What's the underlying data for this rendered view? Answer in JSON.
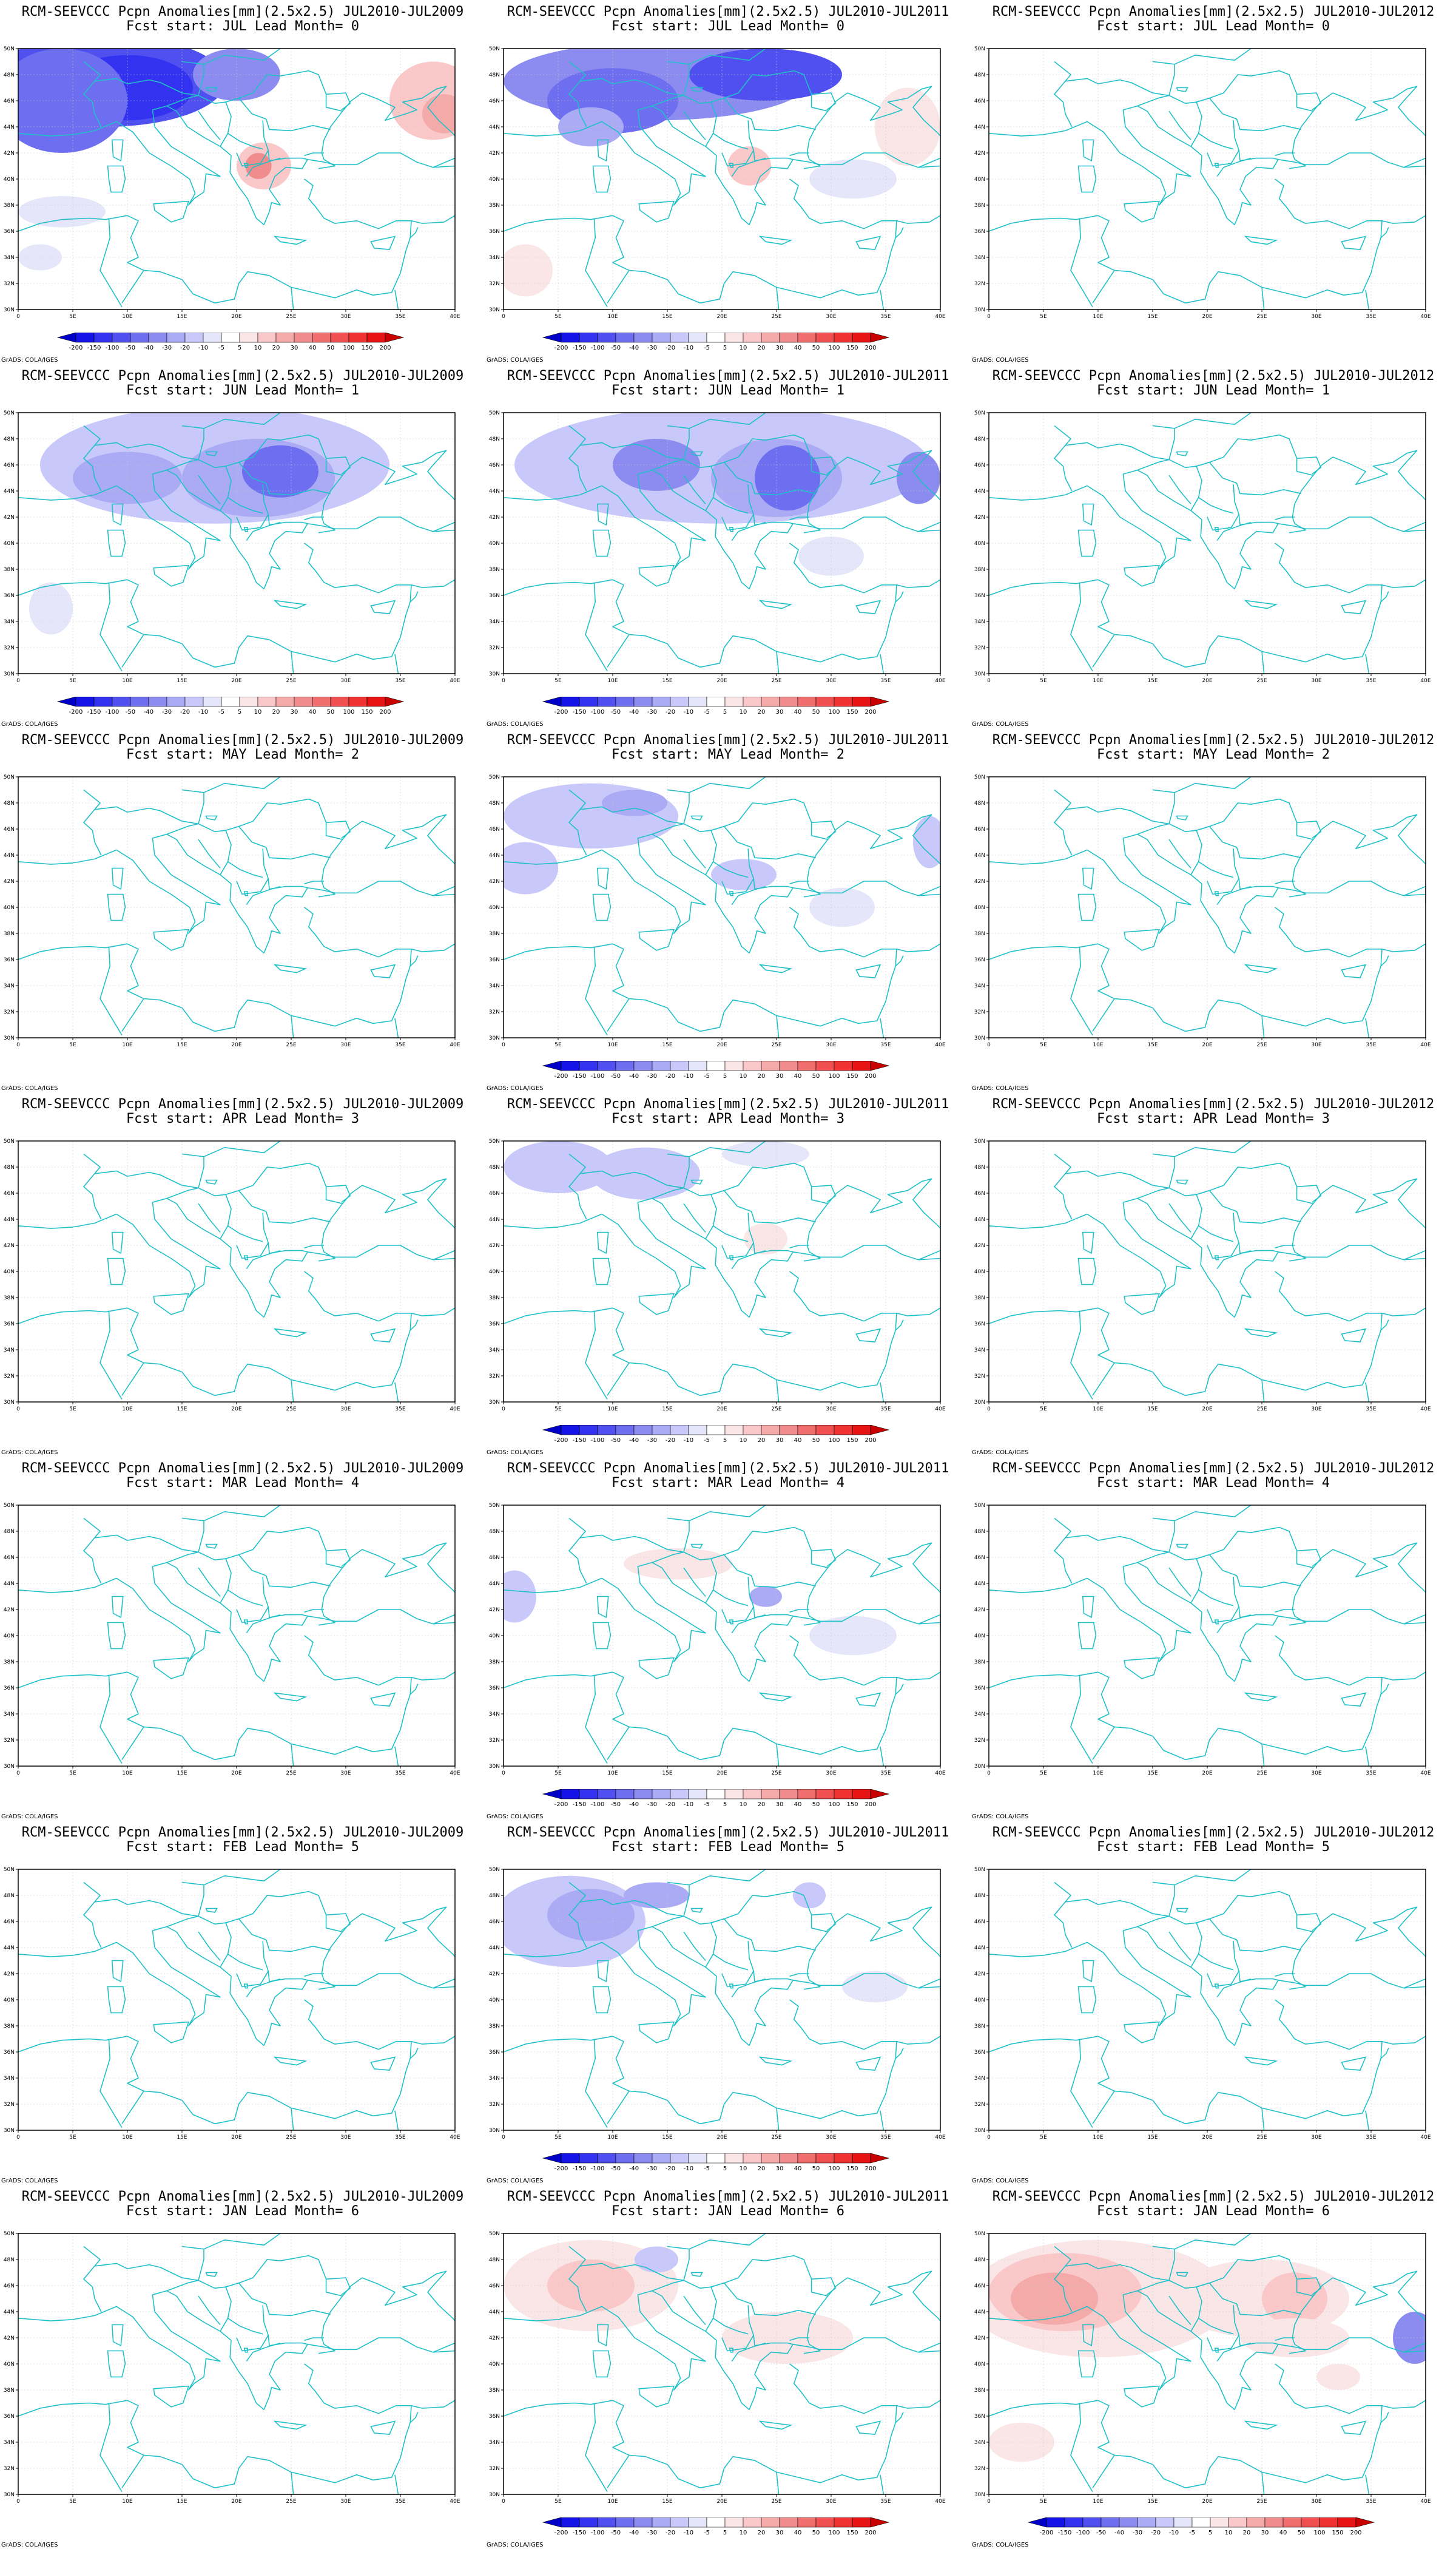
{
  "map_style": {
    "border_color": "#20c0c8",
    "frame_color": "#000000",
    "grid_color": "#c8c8c8"
  },
  "axes": {
    "lon_labels": [
      "0",
      "5E",
      "10E",
      "15E",
      "20E",
      "25E",
      "30E",
      "35E",
      "40E"
    ],
    "lat_labels": [
      "50N",
      "48N",
      "46N",
      "44N",
      "42N",
      "40N",
      "38N",
      "36N",
      "34N",
      "32N",
      "30N"
    ],
    "lon_range": [
      0,
      40
    ],
    "lat_range": [
      30,
      50
    ]
  },
  "legend": {
    "levels": [
      "-200",
      "-150",
      "-100",
      "-50",
      "-40",
      "-30",
      "-20",
      "-10",
      "-5",
      "5",
      "10",
      "20",
      "30",
      "40",
      "50",
      "100",
      "150",
      "200"
    ],
    "colors": [
      "#0000c8",
      "#1414e6",
      "#3232f0",
      "#5050f0",
      "#6e6ef0",
      "#8c8cf0",
      "#aaaaf5",
      "#c8c8fa",
      "#e6e6fa",
      "#ffffff",
      "#fae6e6",
      "#fac8c8",
      "#f5aaaa",
      "#f08c8c",
      "#f06e6e",
      "#f05050",
      "#f03232",
      "#e61414",
      "#c80000"
    ]
  },
  "credit": "GrADS: COLA/IGES",
  "panels": [
    {
      "id": "r0c0",
      "title": "RCM-SEEVCCC Pcpn Anomalies[mm](2.5x2.5) JUL2010-JUL2009",
      "subtitle": "Fcst start: JUL  Lead Month= 0",
      "colorbar": true,
      "blobs": [
        {
          "lon": 8,
          "lat": 47.5,
          "rx": 11,
          "ry": 3.5,
          "level": -50
        },
        {
          "lon": 10,
          "lat": 47,
          "rx": 6,
          "ry": 2.5,
          "level": -100
        },
        {
          "lon": 4,
          "lat": 46,
          "rx": 6,
          "ry": 4,
          "level": -40
        },
        {
          "lon": 20,
          "lat": 48,
          "rx": 4,
          "ry": 2,
          "level": -30
        },
        {
          "lon": 22.5,
          "lat": 41,
          "rx": 2.5,
          "ry": 1.8,
          "level": 20
        },
        {
          "lon": 22,
          "lat": 41,
          "rx": 1.2,
          "ry": 1,
          "level": 40
        },
        {
          "lon": 38,
          "lat": 46,
          "rx": 4,
          "ry": 3,
          "level": 20
        },
        {
          "lon": 39,
          "lat": 45,
          "rx": 2,
          "ry": 1.5,
          "level": 30
        },
        {
          "lon": 4,
          "lat": 37.5,
          "rx": 4,
          "ry": 1.2,
          "level": -5
        },
        {
          "lon": 2,
          "lat": 34,
          "rx": 2,
          "ry": 1,
          "level": -5
        }
      ]
    },
    {
      "id": "r0c1",
      "title": "RCM-SEEVCCC Pcpn Anomalies[mm](2.5x2.5) JUL2010-JUL2011",
      "subtitle": "Fcst start: JUL  Lead Month= 0",
      "colorbar": true,
      "blobs": [
        {
          "lon": 14,
          "lat": 47.5,
          "rx": 14,
          "ry": 3,
          "level": -30
        },
        {
          "lon": 10,
          "lat": 46,
          "rx": 6,
          "ry": 2.5,
          "level": -40
        },
        {
          "lon": 24,
          "lat": 48,
          "rx": 7,
          "ry": 2,
          "level": -50
        },
        {
          "lon": 8,
          "lat": 44,
          "rx": 3,
          "ry": 1.5,
          "level": -20
        },
        {
          "lon": 22.5,
          "lat": 41,
          "rx": 2,
          "ry": 1.5,
          "level": 20
        },
        {
          "lon": 37,
          "lat": 44,
          "rx": 3,
          "ry": 3,
          "level": 10
        },
        {
          "lon": 2,
          "lat": 33,
          "rx": 2.5,
          "ry": 2,
          "level": 10
        },
        {
          "lon": 32,
          "lat": 40,
          "rx": 4,
          "ry": 1.5,
          "level": -5
        }
      ]
    },
    {
      "id": "r0c2",
      "title": "RCM-SEEVCCC Pcpn Anomalies[mm](2.5x2.5) JUL2010-JUL2012",
      "subtitle": "Fcst start: JUL  Lead Month= 0",
      "colorbar": false,
      "blobs": []
    },
    {
      "id": "r1c0",
      "title": "RCM-SEEVCCC Pcpn Anomalies[mm](2.5x2.5) JUL2010-JUL2009",
      "subtitle": "Fcst start: JUN  Lead Month= 1",
      "colorbar": true,
      "blobs": [
        {
          "lon": 18,
          "lat": 46,
          "rx": 16,
          "ry": 4.5,
          "level": -10
        },
        {
          "lon": 22,
          "lat": 45,
          "rx": 7,
          "ry": 3,
          "level": -20
        },
        {
          "lon": 24,
          "lat": 45.5,
          "rx": 3.5,
          "ry": 2,
          "level": -40
        },
        {
          "lon": 10,
          "lat": 45,
          "rx": 5,
          "ry": 2,
          "level": -20
        },
        {
          "lon": 3,
          "lat": 35,
          "rx": 2,
          "ry": 2,
          "level": -5
        }
      ]
    },
    {
      "id": "r1c1",
      "title": "RCM-SEEVCCC Pcpn Anomalies[mm](2.5x2.5) JUL2010-JUL2011",
      "subtitle": "Fcst start: JUN  Lead Month= 1",
      "colorbar": true,
      "blobs": [
        {
          "lon": 20,
          "lat": 46,
          "rx": 19,
          "ry": 4.5,
          "level": -10
        },
        {
          "lon": 25,
          "lat": 45,
          "rx": 6,
          "ry": 3,
          "level": -20
        },
        {
          "lon": 26,
          "lat": 45,
          "rx": 3,
          "ry": 2.5,
          "level": -40
        },
        {
          "lon": 14,
          "lat": 46,
          "rx": 4,
          "ry": 2,
          "level": -30
        },
        {
          "lon": 38,
          "lat": 45,
          "rx": 2,
          "ry": 2,
          "level": -30
        },
        {
          "lon": 30,
          "lat": 39,
          "rx": 3,
          "ry": 1.5,
          "level": -5
        }
      ]
    },
    {
      "id": "r1c2",
      "title": "RCM-SEEVCCC Pcpn Anomalies[mm](2.5x2.5) JUL2010-JUL2012",
      "subtitle": "Fcst start: JUN  Lead Month= 1",
      "colorbar": false,
      "blobs": []
    },
    {
      "id": "r2c0",
      "title": "RCM-SEEVCCC Pcpn Anomalies[mm](2.5x2.5) JUL2010-JUL2009",
      "subtitle": "Fcst start: MAY  Lead Month= 2",
      "colorbar": false,
      "blobs": []
    },
    {
      "id": "r2c1",
      "title": "RCM-SEEVCCC Pcpn Anomalies[mm](2.5x2.5) JUL2010-JUL2011",
      "subtitle": "Fcst start: MAY  Lead Month= 2",
      "colorbar": true,
      "blobs": [
        {
          "lon": 8,
          "lat": 47,
          "rx": 8,
          "ry": 2.5,
          "level": -10
        },
        {
          "lon": 12,
          "lat": 48,
          "rx": 3,
          "ry": 1,
          "level": -20
        },
        {
          "lon": 2,
          "lat": 43,
          "rx": 3,
          "ry": 2,
          "level": -10
        },
        {
          "lon": 22,
          "lat": 42.5,
          "rx": 3,
          "ry": 1.2,
          "level": -10
        },
        {
          "lon": 31,
          "lat": 40,
          "rx": 3,
          "ry": 1.5,
          "level": -5
        },
        {
          "lon": 39,
          "lat": 45,
          "rx": 1.5,
          "ry": 2,
          "level": -10
        }
      ]
    },
    {
      "id": "r2c2",
      "title": "RCM-SEEVCCC Pcpn Anomalies[mm](2.5x2.5) JUL2010-JUL2012",
      "subtitle": "Fcst start: MAY  Lead Month= 2",
      "colorbar": false,
      "blobs": []
    },
    {
      "id": "r3c0",
      "title": "RCM-SEEVCCC Pcpn Anomalies[mm](2.5x2.5) JUL2010-JUL2009",
      "subtitle": "Fcst start: APR  Lead Month= 3",
      "colorbar": false,
      "blobs": []
    },
    {
      "id": "r3c1",
      "title": "RCM-SEEVCCC Pcpn Anomalies[mm](2.5x2.5) JUL2010-JUL2011",
      "subtitle": "Fcst start: APR  Lead Month= 3",
      "colorbar": true,
      "blobs": [
        {
          "lon": 5,
          "lat": 48,
          "rx": 5,
          "ry": 2,
          "level": -10
        },
        {
          "lon": 13,
          "lat": 47.5,
          "rx": 5,
          "ry": 2,
          "level": -10
        },
        {
          "lon": 23,
          "lat": 43,
          "rx": 5,
          "ry": 2.5,
          "level": 5
        },
        {
          "lon": 24,
          "lat": 42.5,
          "rx": 2,
          "ry": 1.2,
          "level": 10
        },
        {
          "lon": 24,
          "lat": 49,
          "rx": 4,
          "ry": 1,
          "level": -5
        }
      ]
    },
    {
      "id": "r3c2",
      "title": "RCM-SEEVCCC Pcpn Anomalies[mm](2.5x2.5) JUL2010-JUL2012",
      "subtitle": "Fcst start: APR  Lead Month= 3",
      "colorbar": false,
      "blobs": []
    },
    {
      "id": "r4c0",
      "title": "RCM-SEEVCCC Pcpn Anomalies[mm](2.5x2.5) JUL2010-JUL2009",
      "subtitle": "Fcst start: MAR  Lead Month= 4",
      "colorbar": false,
      "blobs": []
    },
    {
      "id": "r4c1",
      "title": "RCM-SEEVCCC Pcpn Anomalies[mm](2.5x2.5) JUL2010-JUL2011",
      "subtitle": "Fcst start: MAR  Lead Month= 4",
      "colorbar": true,
      "blobs": [
        {
          "lon": 30,
          "lat": 49,
          "rx": 10,
          "ry": 1.5,
          "level": 5
        },
        {
          "lon": 16,
          "lat": 45.5,
          "rx": 5,
          "ry": 1.2,
          "level": 10
        },
        {
          "lon": 8,
          "lat": 48,
          "rx": 3,
          "ry": 1,
          "level": 5
        },
        {
          "lon": 1,
          "lat": 43,
          "rx": 2,
          "ry": 2,
          "level": -10
        },
        {
          "lon": 32,
          "lat": 40,
          "rx": 4,
          "ry": 1.5,
          "level": -5
        },
        {
          "lon": 24,
          "lat": 43,
          "rx": 1.5,
          "ry": 0.8,
          "level": -20
        }
      ]
    },
    {
      "id": "r4c2",
      "title": "RCM-SEEVCCC Pcpn Anomalies[mm](2.5x2.5) JUL2010-JUL2012",
      "subtitle": "Fcst start: MAR  Lead Month= 4",
      "colorbar": false,
      "blobs": []
    },
    {
      "id": "r5c0",
      "title": "RCM-SEEVCCC Pcpn Anomalies[mm](2.5x2.5) JUL2010-JUL2009",
      "subtitle": "Fcst start: FEB  Lead Month= 5",
      "colorbar": false,
      "blobs": []
    },
    {
      "id": "r5c1",
      "title": "RCM-SEEVCCC Pcpn Anomalies[mm](2.5x2.5) JUL2010-JUL2011",
      "subtitle": "Fcst start: FEB  Lead Month= 5",
      "colorbar": true,
      "blobs": [
        {
          "lon": 6,
          "lat": 46,
          "rx": 7,
          "ry": 3.5,
          "level": -10
        },
        {
          "lon": 8,
          "lat": 46.5,
          "rx": 4,
          "ry": 2,
          "level": -20
        },
        {
          "lon": 14,
          "lat": 48,
          "rx": 3,
          "ry": 1,
          "level": -20
        },
        {
          "lon": 28,
          "lat": 48,
          "rx": 1.5,
          "ry": 1,
          "level": -10
        },
        {
          "lon": 34,
          "lat": 41,
          "rx": 3,
          "ry": 1.2,
          "level": -5
        }
      ]
    },
    {
      "id": "r5c2",
      "title": "RCM-SEEVCCC Pcpn Anomalies[mm](2.5x2.5) JUL2010-JUL2012",
      "subtitle": "Fcst start: FEB  Lead Month= 5",
      "colorbar": false,
      "blobs": []
    },
    {
      "id": "r6c0",
      "title": "RCM-SEEVCCC Pcpn Anomalies[mm](2.5x2.5) JUL2010-JUL2009",
      "subtitle": "Fcst start: JAN  Lead Month= 6",
      "colorbar": false,
      "blobs": []
    },
    {
      "id": "r6c1",
      "title": "RCM-SEEVCCC Pcpn Anomalies[mm](2.5x2.5) JUL2010-JUL2011",
      "subtitle": "Fcst start: JAN  Lead Month= 6",
      "colorbar": true,
      "blobs": [
        {
          "lon": 8,
          "lat": 46,
          "rx": 8,
          "ry": 3.5,
          "level": 10
        },
        {
          "lon": 8,
          "lat": 46,
          "rx": 4,
          "ry": 2,
          "level": 20
        },
        {
          "lon": 26,
          "lat": 42,
          "rx": 6,
          "ry": 2,
          "level": 10
        },
        {
          "lon": 27,
          "lat": 48,
          "rx": 6,
          "ry": 2,
          "level": 5
        },
        {
          "lon": 14,
          "lat": 48,
          "rx": 2,
          "ry": 1,
          "level": -10
        }
      ]
    },
    {
      "id": "r6c2",
      "title": "RCM-SEEVCCC Pcpn Anomalies[mm](2.5x2.5) JUL2010-JUL2012",
      "subtitle": "Fcst start: JAN  Lead Month= 6",
      "colorbar": true,
      "blobs": [
        {
          "lon": 10,
          "lat": 45,
          "rx": 12,
          "ry": 4.5,
          "level": 10
        },
        {
          "lon": 7,
          "lat": 45.5,
          "rx": 7,
          "ry": 3,
          "level": 20
        },
        {
          "lon": 6,
          "lat": 45,
          "rx": 4,
          "ry": 2,
          "level": 30
        },
        {
          "lon": 25,
          "lat": 45,
          "rx": 8,
          "ry": 3,
          "level": 10
        },
        {
          "lon": 28,
          "lat": 45,
          "rx": 3,
          "ry": 2,
          "level": 20
        },
        {
          "lon": 28,
          "lat": 42,
          "rx": 5,
          "ry": 1.5,
          "level": 10
        },
        {
          "lon": 39,
          "lat": 42,
          "rx": 2,
          "ry": 2,
          "level": -30
        },
        {
          "lon": 3,
          "lat": 34,
          "rx": 3,
          "ry": 1.5,
          "level": 10
        },
        {
          "lon": 32,
          "lat": 39,
          "rx": 2,
          "ry": 1,
          "level": 10
        }
      ]
    }
  ]
}
